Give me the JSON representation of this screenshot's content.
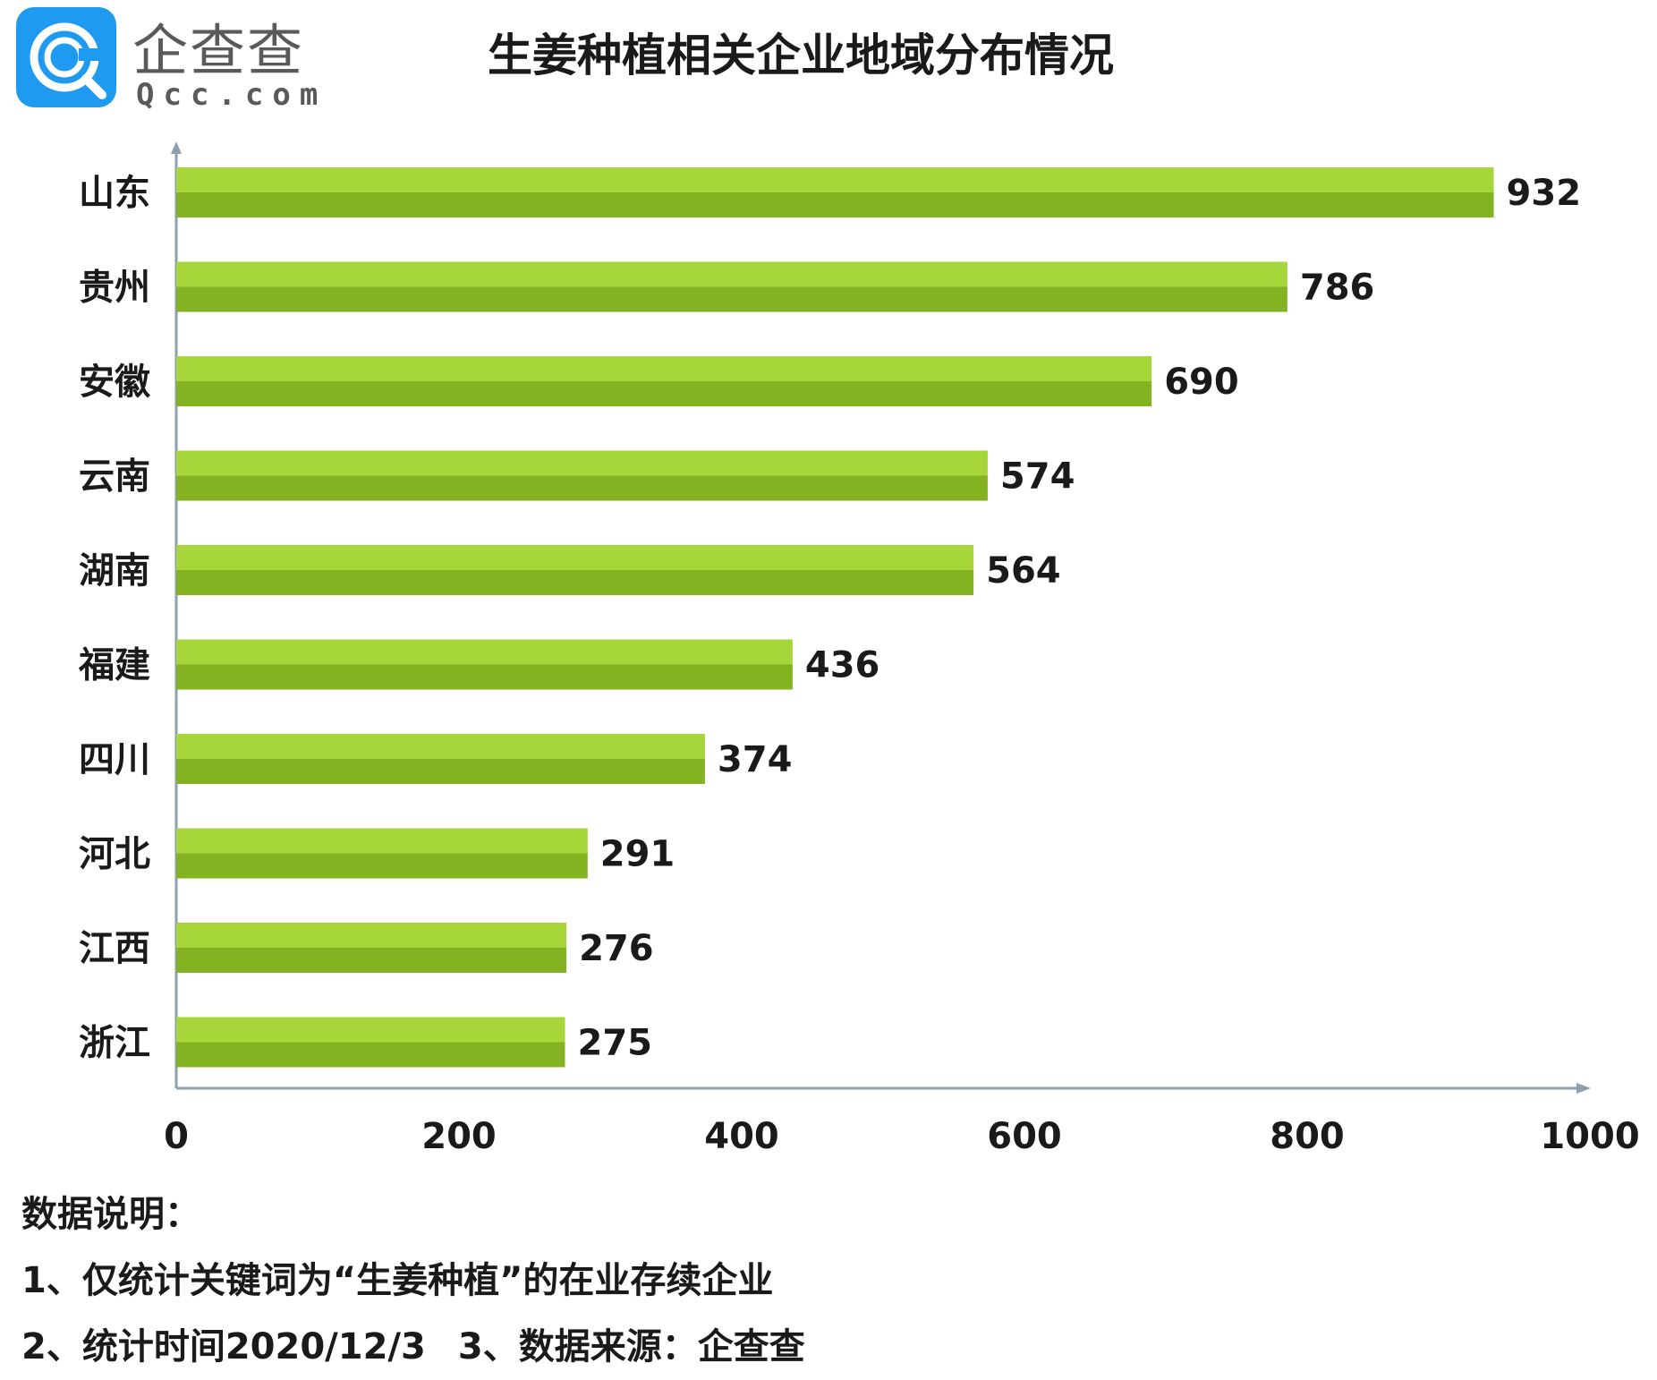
{
  "brand": {
    "name": "企查查",
    "domain": "Qcc.com",
    "logo_icon": "qcc-logo-icon"
  },
  "colors": {
    "bar_top": "#a6d63a",
    "bar_bottom": "#84b321",
    "axis": "#8ea0b0",
    "text": "#1a1a1a"
  },
  "chart_data": {
    "type": "bar",
    "orientation": "horizontal",
    "title": "生姜种植相关企业地域分布情况",
    "categories": [
      "山东",
      "贵州",
      "安徽",
      "云南",
      "湖南",
      "福建",
      "四川",
      "河北",
      "江西",
      "浙江"
    ],
    "values": [
      932,
      786,
      690,
      574,
      564,
      436,
      374,
      291,
      276,
      275
    ],
    "xlim": [
      0,
      1000
    ],
    "xticks": [
      0,
      200,
      400,
      600,
      800,
      1000
    ],
    "xlabel": "",
    "ylabel": "",
    "grid": false,
    "legend": "none",
    "data_labels": true
  },
  "notes": {
    "heading": "数据说明：",
    "line1": "1、仅统计关键词为“生姜种植”的在业存续企业",
    "line2a": "2、统计时间2020/12/3",
    "line2b": "3、数据来源：企查查"
  }
}
